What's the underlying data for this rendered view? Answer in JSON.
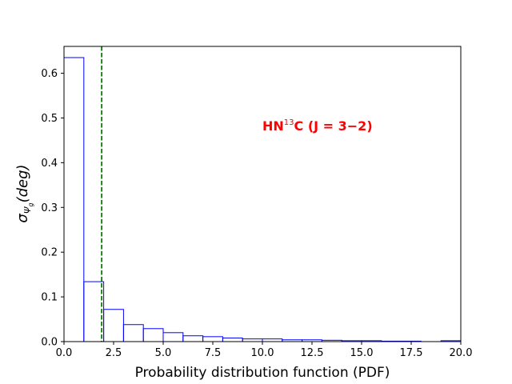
{
  "chart_data": {
    "type": "bar",
    "subtype": "step-histogram",
    "xlabel": "Probability distribution function (PDF)",
    "ylabel_main": "σ",
    "ylabel_sub": "Ψ",
    "ylabel_subsub": "g",
    "ylabel_rest": "(deg)",
    "annotation": {
      "prefix": "HN",
      "superscript": "13",
      "suffix": "C (J = 3−2)",
      "color": "#ff0000"
    },
    "xlim": [
      0,
      20
    ],
    "ylim": [
      0,
      0.66
    ],
    "xticks": [
      0,
      2.5,
      5,
      7.5,
      10,
      12.5,
      15,
      17.5,
      20
    ],
    "xtick_labels": [
      "0.0",
      "2.5",
      "5.0",
      "7.5",
      "10.0",
      "12.5",
      "15.0",
      "17.5",
      "20.0"
    ],
    "yticks": [
      0,
      0.1,
      0.2,
      0.3,
      0.4,
      0.5,
      0.6
    ],
    "ytick_labels": [
      "0.0",
      "0.1",
      "0.2",
      "0.3",
      "0.4",
      "0.5",
      "0.6"
    ],
    "bin_edges": [
      0,
      1,
      2,
      3,
      4,
      5,
      6,
      7,
      8,
      9,
      10,
      11,
      12,
      13,
      14,
      15,
      16,
      17,
      18,
      19,
      20
    ],
    "values": [
      0.635,
      0.134,
      0.072,
      0.038,
      0.029,
      0.02,
      0.013,
      0.011,
      0.008,
      0.006,
      0.006,
      0.004,
      0.004,
      0.003,
      0.002,
      0.002,
      0.001,
      0.001,
      0.0,
      0.002
    ],
    "bar_color": "#0000ff",
    "vline": {
      "x": 1.9,
      "color": "#008000",
      "style": "dashed"
    },
    "grid": false
  }
}
